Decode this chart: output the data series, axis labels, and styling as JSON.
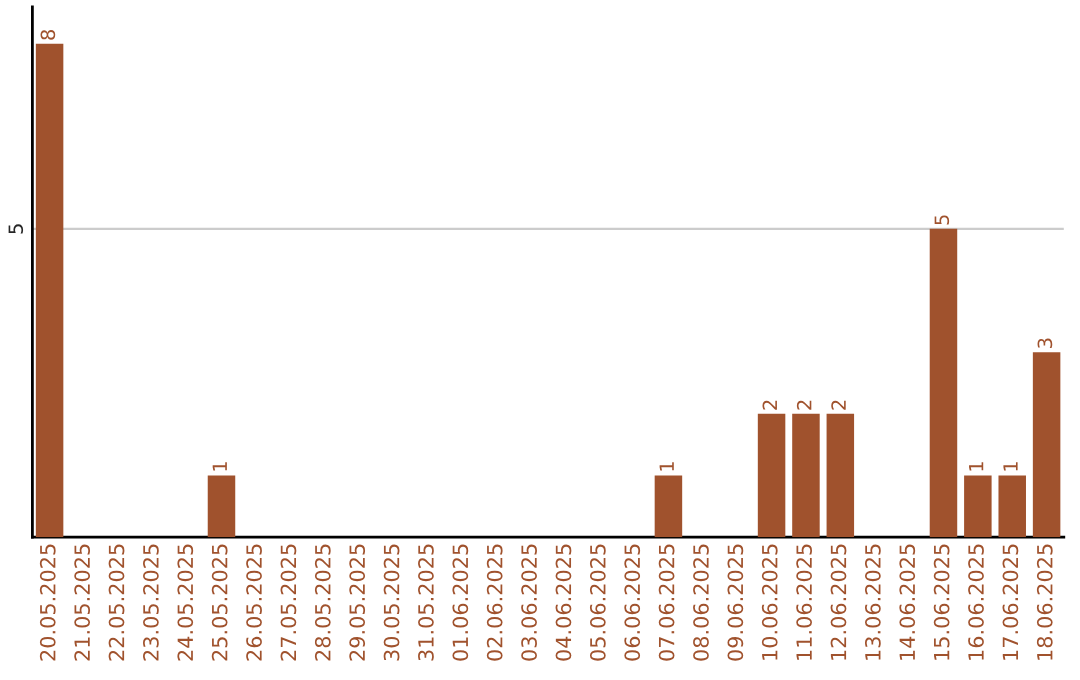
{
  "chart_data": {
    "type": "bar",
    "categories": [
      "20.05.2025",
      "21.05.2025",
      "22.05.2025",
      "23.05.2025",
      "24.05.2025",
      "25.05.2025",
      "26.05.2025",
      "27.05.2025",
      "28.05.2025",
      "29.05.2025",
      "30.05.2025",
      "31.05.2025",
      "01.06.2025",
      "02.06.2025",
      "03.06.2025",
      "04.06.2025",
      "05.06.2025",
      "06.06.2025",
      "07.06.2025",
      "08.06.2025",
      "09.06.2025",
      "10.06.2025",
      "11.06.2025",
      "12.06.2025",
      "13.06.2025",
      "14.06.2025",
      "15.06.2025",
      "16.06.2025",
      "17.06.2025",
      "18.06.2025"
    ],
    "values": [
      8,
      0,
      0,
      0,
      0,
      1,
      0,
      0,
      0,
      0,
      0,
      0,
      0,
      0,
      0,
      0,
      0,
      0,
      1,
      0,
      0,
      2,
      2,
      2,
      0,
      0,
      5,
      1,
      1,
      3
    ],
    "value_labels": [
      "8",
      null,
      null,
      null,
      null,
      "1",
      null,
      null,
      null,
      null,
      null,
      null,
      null,
      null,
      null,
      null,
      null,
      null,
      "1",
      null,
      null,
      "2",
      "2",
      "2",
      null,
      null,
      "5",
      "1",
      "1",
      "3"
    ],
    "color": "#a0522d",
    "ylim": [
      0,
      8.6
    ],
    "yticks": [
      5
    ],
    "grid": "y",
    "legend": false
  }
}
